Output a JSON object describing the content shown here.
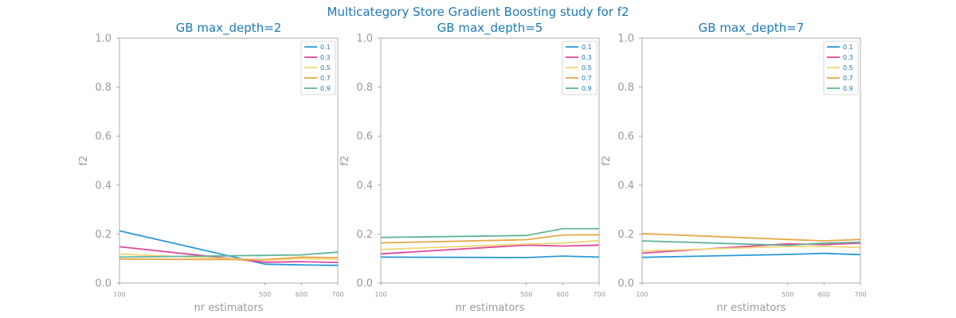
{
  "title": "Multicategory Store Gradient Boosting study for f2",
  "colors": {
    "0.1": "#2a9bd8",
    "0.3": "#e0489a",
    "0.5": "#f0d77a",
    "0.7": "#e8a84a",
    "0.9": "#62b59a",
    "text": "#1f77b4",
    "axis": "#999999"
  },
  "chart_data": [
    {
      "type": "line",
      "title": "GB max_depth=2",
      "xlabel": "nr estimators",
      "ylabel": "f2",
      "x": [
        100,
        500,
        600,
        700
      ],
      "xticks": [
        "100",
        "500",
        "600",
        "700"
      ],
      "xlim": [
        100,
        700
      ],
      "ylim": [
        0.0,
        1.0
      ],
      "yticks": [
        "0.0",
        "0.2",
        "0.4",
        "0.6",
        "0.8",
        "1.0"
      ],
      "legend": "top-right",
      "series": [
        {
          "name": "0.1",
          "values": [
            0.213,
            0.077,
            0.074,
            0.072
          ]
        },
        {
          "name": "0.3",
          "values": [
            0.148,
            0.085,
            0.087,
            0.084
          ]
        },
        {
          "name": "0.5",
          "values": [
            0.118,
            0.094,
            0.1,
            0.096
          ]
        },
        {
          "name": "0.7",
          "values": [
            0.098,
            0.095,
            0.106,
            0.104
          ]
        },
        {
          "name": "0.9",
          "values": [
            0.106,
            0.113,
            0.115,
            0.126
          ]
        }
      ]
    },
    {
      "type": "line",
      "title": "GB max_depth=5",
      "xlabel": "nr estimators",
      "ylabel": "f2",
      "x": [
        100,
        500,
        600,
        700
      ],
      "xticks": [
        "100",
        "500",
        "600",
        "700"
      ],
      "xlim": [
        100,
        700
      ],
      "ylim": [
        0.0,
        1.0
      ],
      "yticks": [
        "0.0",
        "0.2",
        "0.4",
        "0.6",
        "0.8",
        "1.0"
      ],
      "legend": "top-right",
      "series": [
        {
          "name": "0.1",
          "values": [
            0.106,
            0.104,
            0.11,
            0.106
          ]
        },
        {
          "name": "0.3",
          "values": [
            0.119,
            0.155,
            0.151,
            0.155
          ]
        },
        {
          "name": "0.5",
          "values": [
            0.137,
            0.159,
            0.163,
            0.173
          ]
        },
        {
          "name": "0.7",
          "values": [
            0.164,
            0.177,
            0.196,
            0.197
          ]
        },
        {
          "name": "0.9",
          "values": [
            0.186,
            0.194,
            0.222,
            0.222
          ]
        }
      ]
    },
    {
      "type": "line",
      "title": "GB max_depth=7",
      "xlabel": "nr estimators",
      "ylabel": "f2",
      "x": [
        100,
        500,
        600,
        700
      ],
      "xticks": [
        "100",
        "500",
        "600",
        "700"
      ],
      "xlim": [
        100,
        700
      ],
      "ylim": [
        0.0,
        1.0
      ],
      "yticks": [
        "0.0",
        "0.2",
        "0.4",
        "0.6",
        "0.8",
        "1.0"
      ],
      "legend": "top-right",
      "series": [
        {
          "name": "0.1",
          "values": [
            0.105,
            0.117,
            0.121,
            0.116
          ]
        },
        {
          "name": "0.3",
          "values": [
            0.122,
            0.16,
            0.157,
            0.163
          ]
        },
        {
          "name": "0.5",
          "values": [
            0.131,
            0.149,
            0.15,
            0.145
          ]
        },
        {
          "name": "0.7",
          "values": [
            0.202,
            0.178,
            0.172,
            0.178
          ]
        },
        {
          "name": "0.9",
          "values": [
            0.172,
            0.154,
            0.163,
            0.167
          ]
        }
      ]
    }
  ]
}
